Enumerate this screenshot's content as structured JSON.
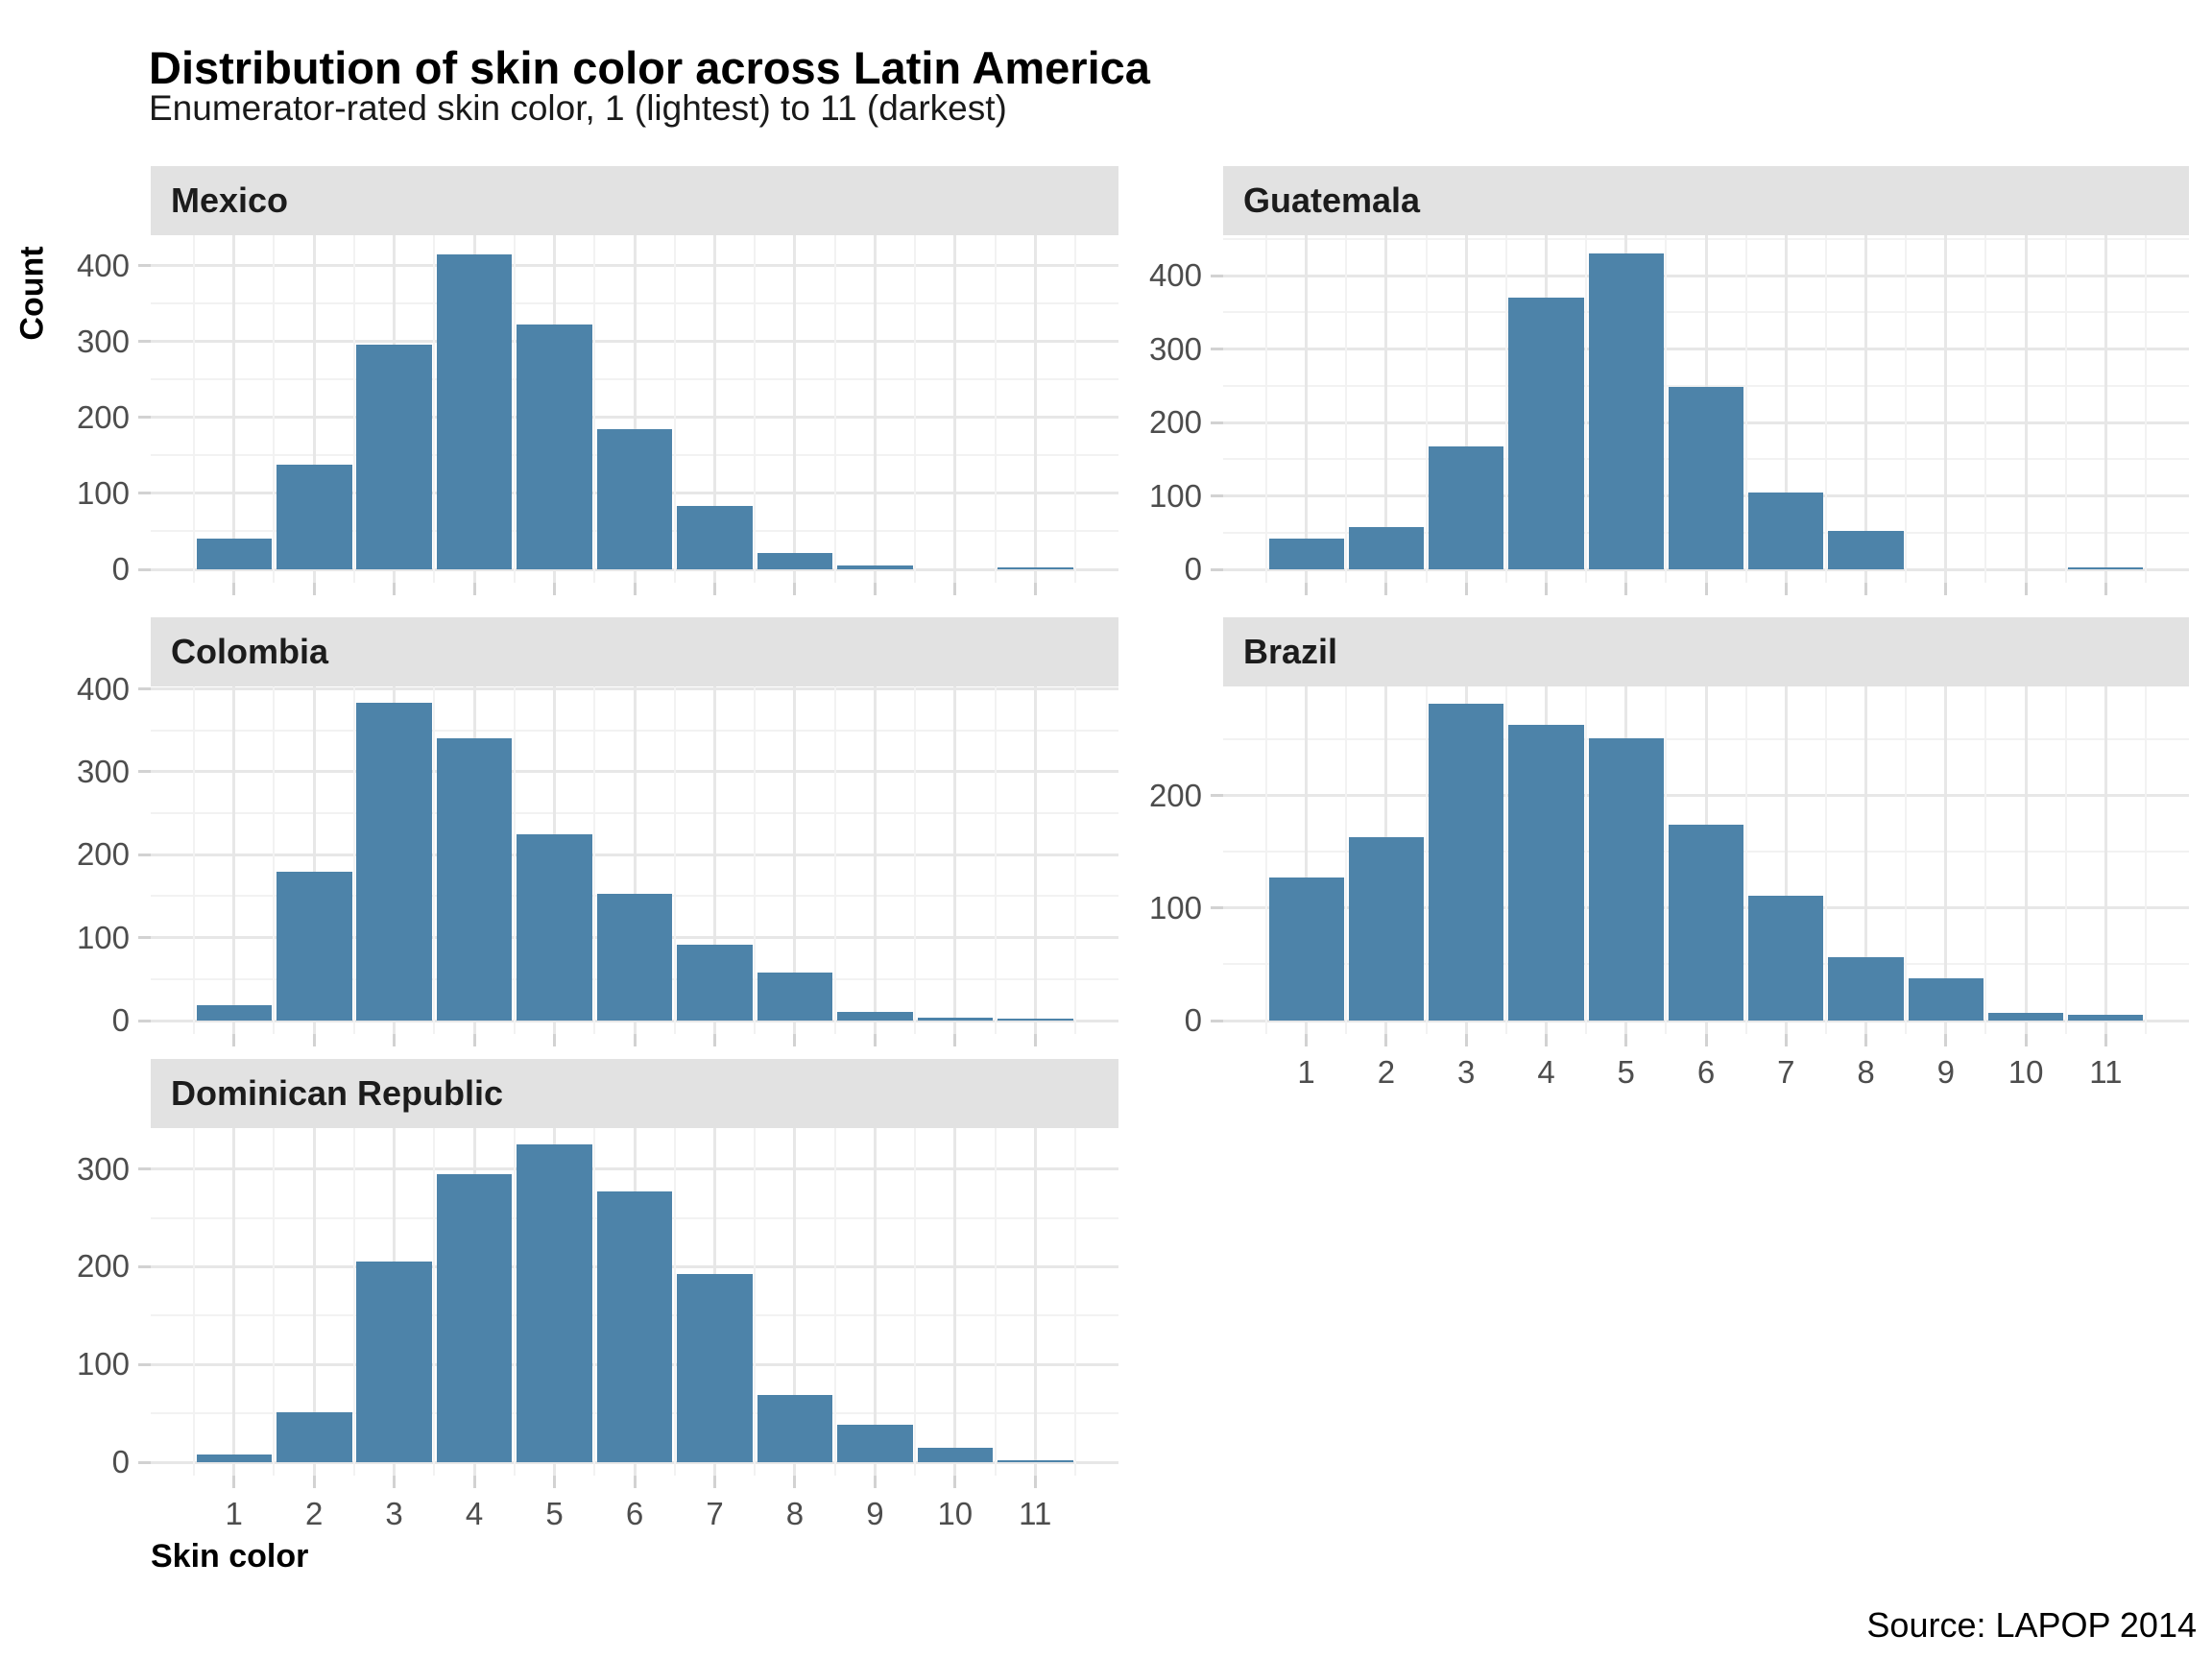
{
  "header": {
    "title": "Distribution of skin color across Latin America",
    "subtitle": "Enumerator-rated skin color, 1 (lightest) to 11 (darkest)"
  },
  "axes": {
    "y_title": "Count",
    "x_title": "Skin color"
  },
  "caption": {
    "source": "Source: LAPOP 2014"
  },
  "colors": {
    "bar": "#4d83a9",
    "strip_bg": "#e2e2e2",
    "grid_major": "#e7e7e7",
    "grid_minor": "#f2f2f2",
    "tick_mark": "#d2d2d2",
    "tick_label": "#4d4d4d"
  },
  "chart_data": {
    "type": "bar",
    "title": "Distribution of skin color across Latin America",
    "subtitle": "Enumerator-rated skin color, 1 (lightest) to 11 (darkest)",
    "xlabel": "Skin color",
    "ylabel": "Count",
    "x": [
      1,
      2,
      3,
      4,
      5,
      6,
      7,
      8,
      9,
      10,
      11
    ],
    "grid": true,
    "legend": "none",
    "facets": [
      {
        "name": "Mexico",
        "values": [
          40,
          138,
          296,
          415,
          322,
          185,
          84,
          22,
          5,
          0,
          2
        ],
        "yticks": [
          0,
          100,
          200,
          300,
          400
        ],
        "ymax": 440,
        "show_x_axis": false
      },
      {
        "name": "Guatemala",
        "values": [
          42,
          58,
          168,
          370,
          430,
          248,
          105,
          53,
          0,
          0,
          2
        ],
        "yticks": [
          0,
          100,
          200,
          300,
          400
        ],
        "ymax": 455,
        "show_x_axis": false
      },
      {
        "name": "Colombia",
        "values": [
          19,
          180,
          383,
          340,
          225,
          153,
          91,
          58,
          10,
          3,
          1
        ],
        "yticks": [
          0,
          100,
          200,
          300,
          400
        ],
        "ymax": 403,
        "show_x_axis": false
      },
      {
        "name": "Brazil",
        "values": [
          127,
          163,
          282,
          263,
          251,
          174,
          111,
          56,
          38,
          7,
          5
        ],
        "yticks": [
          0,
          100,
          200
        ],
        "ymax": 297,
        "show_x_axis": true
      },
      {
        "name": "Dominican Republic",
        "values": [
          8,
          51,
          205,
          295,
          325,
          277,
          193,
          69,
          38,
          15,
          1
        ],
        "yticks": [
          0,
          100,
          200,
          300
        ],
        "ymax": 342,
        "show_x_axis": true
      }
    ]
  }
}
